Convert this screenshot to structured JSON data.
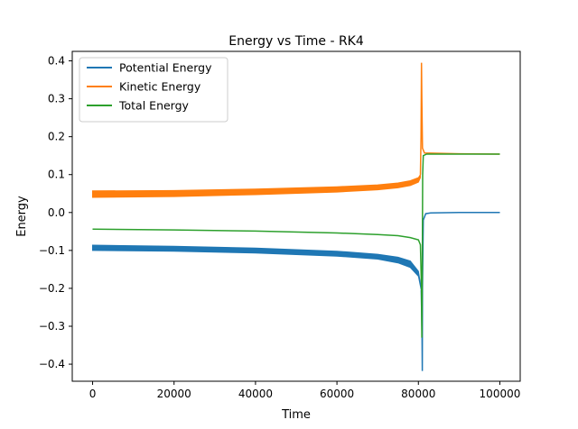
{
  "chart_data": {
    "type": "line",
    "title": "Energy vs Time - RK4",
    "xlabel": "Time",
    "ylabel": "Energy",
    "xlim": [
      -5000,
      105000
    ],
    "ylim": [
      -0.445,
      0.425
    ],
    "xticks": [
      0,
      20000,
      40000,
      60000,
      80000,
      100000
    ],
    "xtick_labels": [
      "0",
      "20000",
      "40000",
      "60000",
      "80000",
      "100000"
    ],
    "yticks": [
      -0.4,
      -0.3,
      -0.2,
      -0.1,
      0.0,
      0.1,
      0.2,
      0.3,
      0.4
    ],
    "ytick_labels": [
      "−0.4",
      "−0.3",
      "−0.2",
      "−0.1",
      "0.0",
      "0.1",
      "0.2",
      "0.3",
      "0.4"
    ],
    "grid": false,
    "legend_position": "top-left",
    "series": [
      {
        "name": "Potential Energy",
        "color": "#1f77b4",
        "band_upper": [
          [
            0,
            -0.086
          ],
          [
            20000,
            -0.089
          ],
          [
            40000,
            -0.094
          ],
          [
            60000,
            -0.102
          ],
          [
            70000,
            -0.11
          ],
          [
            75000,
            -0.118
          ],
          [
            78000,
            -0.128
          ],
          [
            80000,
            -0.155
          ],
          [
            80700,
            -0.2
          ]
        ],
        "band_lower": [
          [
            0,
            -0.1
          ],
          [
            20000,
            -0.102
          ],
          [
            40000,
            -0.107
          ],
          [
            60000,
            -0.115
          ],
          [
            70000,
            -0.123
          ],
          [
            75000,
            -0.133
          ],
          [
            78000,
            -0.145
          ],
          [
            80000,
            -0.168
          ],
          [
            80700,
            -0.205
          ]
        ],
        "spike": [
          [
            80700,
            -0.205
          ],
          [
            80900,
            -0.32
          ],
          [
            80950,
            -0.418
          ],
          [
            81000,
            -0.2
          ],
          [
            81200,
            -0.02
          ],
          [
            81800,
            -0.003
          ],
          [
            83000,
            -0.001
          ],
          [
            90000,
            0.0
          ],
          [
            100000,
            0.0
          ]
        ]
      },
      {
        "name": "Kinetic Energy",
        "color": "#ff7f0e",
        "band_upper": [
          [
            0,
            0.057
          ],
          [
            20000,
            0.058
          ],
          [
            40000,
            0.062
          ],
          [
            60000,
            0.068
          ],
          [
            70000,
            0.073
          ],
          [
            75000,
            0.078
          ],
          [
            78000,
            0.084
          ],
          [
            80000,
            0.092
          ],
          [
            80500,
            0.1
          ]
        ],
        "band_lower": [
          [
            0,
            0.04
          ],
          [
            20000,
            0.042
          ],
          [
            40000,
            0.047
          ],
          [
            60000,
            0.054
          ],
          [
            70000,
            0.06
          ],
          [
            75000,
            0.065
          ],
          [
            78000,
            0.071
          ],
          [
            80000,
            0.08
          ],
          [
            80500,
            0.092
          ]
        ],
        "spike": [
          [
            80500,
            0.1
          ],
          [
            80650,
            0.2
          ],
          [
            80750,
            0.395
          ],
          [
            80850,
            0.3
          ],
          [
            81000,
            0.17
          ],
          [
            81500,
            0.157
          ],
          [
            90000,
            0.155
          ],
          [
            100000,
            0.154
          ]
        ]
      },
      {
        "name": "Total Energy",
        "color": "#2ca02c",
        "line": [
          [
            0,
            -0.044
          ],
          [
            20000,
            -0.046
          ],
          [
            40000,
            -0.049
          ],
          [
            60000,
            -0.054
          ],
          [
            70000,
            -0.058
          ],
          [
            75000,
            -0.061
          ],
          [
            78000,
            -0.066
          ],
          [
            80000,
            -0.072
          ],
          [
            80500,
            -0.085
          ],
          [
            80750,
            -0.2
          ],
          [
            80850,
            -0.33
          ],
          [
            80950,
            -0.15
          ],
          [
            81050,
            0.1
          ],
          [
            81200,
            0.15
          ],
          [
            82000,
            0.154
          ],
          [
            90000,
            0.154
          ],
          [
            100000,
            0.154
          ]
        ]
      }
    ]
  }
}
